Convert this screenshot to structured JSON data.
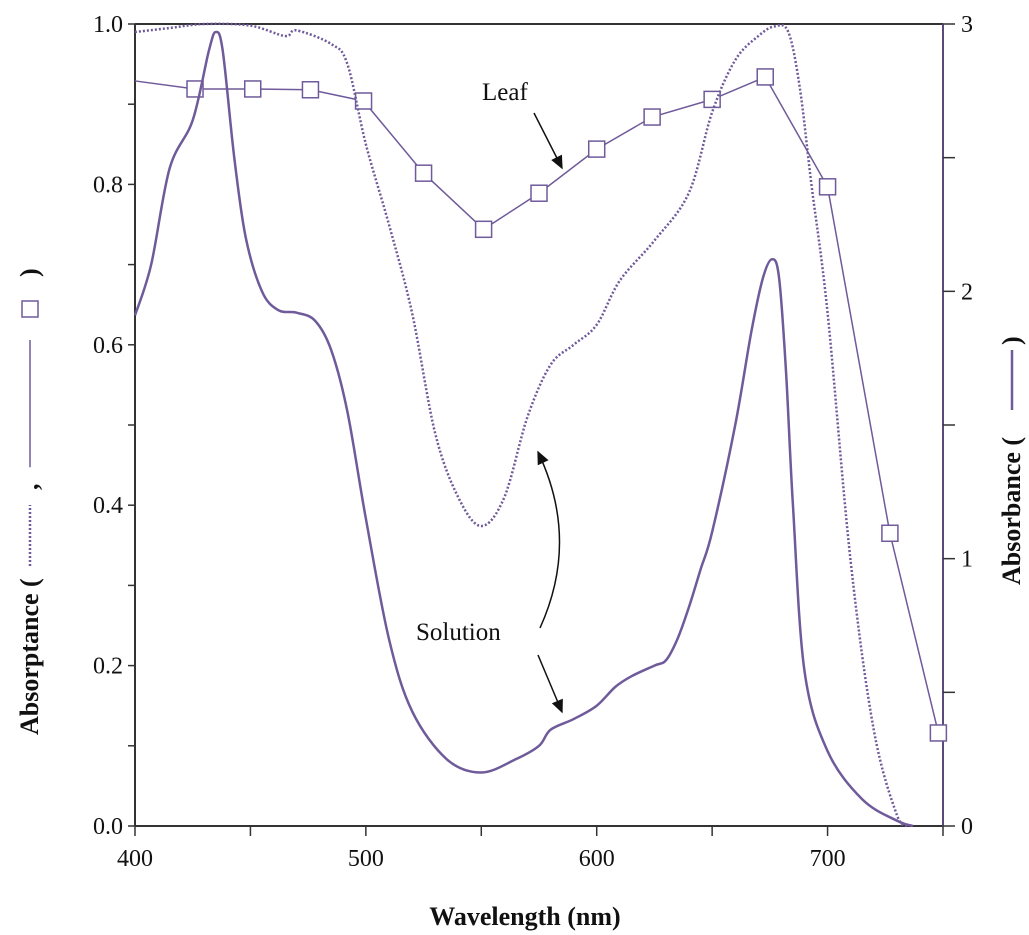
{
  "chart_data": {
    "type": "line",
    "xlabel": "Wavelength (nm)",
    "ylabel": "Absorptance (",
    "ylabel_sep": ",",
    "ylabel_end": ")",
    "y2label": "Absorbance (",
    "y2label_end": ")",
    "xlim": [
      400,
      750
    ],
    "ylim": [
      0,
      1
    ],
    "y2lim": [
      0,
      3
    ],
    "xticks": [
      "400",
      "500",
      "600",
      "700"
    ],
    "xtick_values": [
      400,
      500,
      600,
      700
    ],
    "yticks": [
      "0.0",
      "0.2",
      "0.4",
      "0.6",
      "0.8",
      "1.0"
    ],
    "ytick_values": [
      0,
      0.2,
      0.4,
      0.6,
      0.8,
      1.0
    ],
    "y2ticks": [
      "0",
      "1",
      "2",
      "3"
    ],
    "y2tick_values": [
      0,
      1,
      2,
      3
    ],
    "annotations": {
      "leaf": "Leaf",
      "solution": "Solution"
    },
    "color": "#6f5a9a",
    "series": [
      {
        "name": "Leaf absorptance (squares)",
        "axis": "left",
        "style": "line-square",
        "x": [
          400,
          426,
          451,
          476,
          499,
          525,
          551,
          575,
          600,
          624,
          650,
          673,
          700,
          727,
          748
        ],
        "y": [
          0.929,
          0.919,
          0.919,
          0.918,
          0.904,
          0.814,
          0.744,
          0.789,
          0.844,
          0.884,
          0.906,
          0.934,
          0.797,
          0.365,
          0.116
        ],
        "marker_x": [
          426,
          451,
          476,
          499,
          525,
          551,
          575,
          600,
          624,
          650,
          673,
          700,
          727,
          748
        ]
      },
      {
        "name": "Absorptance (dotted)",
        "axis": "left",
        "style": "dotted",
        "x": [
          400,
          415,
          430,
          450,
          465,
          470,
          485,
          492,
          500,
          510,
          520,
          530,
          540,
          550,
          560,
          570,
          580,
          590,
          600,
          610,
          625,
          640,
          650,
          660,
          670,
          677,
          683,
          688,
          693,
          700,
          710,
          720,
          730,
          735
        ],
        "y": [
          0.99,
          0.995,
          1.0,
          0.998,
          0.985,
          0.992,
          0.975,
          0.95,
          0.85,
          0.75,
          0.64,
          0.49,
          0.41,
          0.374,
          0.41,
          0.51,
          0.575,
          0.6,
          0.625,
          0.68,
          0.73,
          0.79,
          0.89,
          0.955,
          0.985,
          0.997,
          0.99,
          0.92,
          0.8,
          0.64,
          0.33,
          0.12,
          0.014,
          0.0
        ]
      },
      {
        "name": "Absorbance (solid)",
        "axis": "right",
        "style": "solid",
        "x": [
          400,
          407,
          415,
          425,
          432,
          435,
          438,
          443,
          448,
          455,
          462,
          470,
          478,
          485,
          492,
          500,
          510,
          520,
          535,
          550,
          565,
          575,
          580,
          590,
          600,
          608,
          615,
          625,
          630,
          635,
          640,
          645,
          650,
          660,
          667,
          672,
          676,
          679,
          682,
          685,
          690,
          700,
          715,
          730,
          737
        ],
        "y": [
          1.91,
          2.1,
          2.46,
          2.64,
          2.9,
          2.97,
          2.9,
          2.5,
          2.2,
          2.0,
          1.93,
          1.92,
          1.89,
          1.78,
          1.55,
          1.15,
          0.7,
          0.43,
          0.25,
          0.2,
          0.25,
          0.3,
          0.36,
          0.4,
          0.45,
          0.52,
          0.56,
          0.6,
          0.62,
          0.7,
          0.82,
          0.96,
          1.1,
          1.5,
          1.85,
          2.05,
          2.12,
          2.05,
          1.7,
          1.2,
          0.58,
          0.28,
          0.1,
          0.02,
          0.0
        ]
      }
    ]
  }
}
